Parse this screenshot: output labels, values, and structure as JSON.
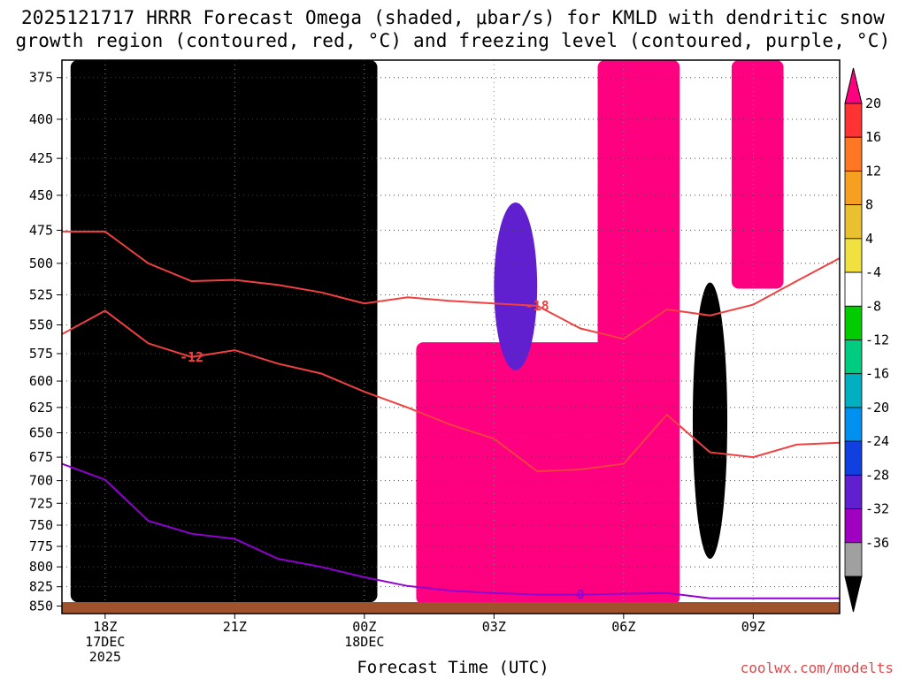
{
  "title_line1": "2025121717 HRRR Forecast Omega (shaded, μbar/s) for KMLD with dendritic snow",
  "title_line2": "growth region (contoured, red, °C) and freezing level (contoured, purple, °C)",
  "credit": "coolwx.com/modelts",
  "chart_data": {
    "type": "heatmap",
    "title": "2025121717 HRRR Forecast Omega (shaded, μbar/s) for KMLD with dendritic snow growth region (contoured, red, °C) and freezing level (contoured, purple, °C)",
    "xlabel": "Forecast Time (UTC)",
    "ylabel": "",
    "x_range_hours_from_18Z_17DEC": [
      -1,
      17
    ],
    "y_range_hPa": [
      860,
      365
    ],
    "y_scale": "pressure (log-like), inverted",
    "grid": "dotted",
    "x_ticks": [
      {
        "hour": 0,
        "label": "18Z",
        "sub1": "17DEC",
        "sub2": "2025"
      },
      {
        "hour": 3,
        "label": "21Z",
        "sub1": "",
        "sub2": ""
      },
      {
        "hour": 6,
        "label": "00Z",
        "sub1": "18DEC",
        "sub2": ""
      },
      {
        "hour": 9,
        "label": "03Z",
        "sub1": "",
        "sub2": ""
      },
      {
        "hour": 12,
        "label": "06Z",
        "sub1": "",
        "sub2": ""
      },
      {
        "hour": 15,
        "label": "09Z",
        "sub1": "",
        "sub2": ""
      }
    ],
    "y_ticks": [
      375,
      400,
      425,
      450,
      475,
      500,
      525,
      550,
      575,
      600,
      625,
      650,
      675,
      700,
      725,
      750,
      775,
      800,
      825,
      850
    ],
    "colorbar": {
      "labels": [
        "20",
        "16",
        "12",
        "8",
        "4",
        "-4",
        "-8",
        "-12",
        "-16",
        "-20",
        "-24",
        "-28",
        "-32",
        "-36"
      ],
      "colors": [
        "#ff0080",
        "#ff3333",
        "#ff7722",
        "#f5a020",
        "#e8c030",
        "#f0e040",
        "#ffffff",
        "#00cc00",
        "#00cc80",
        "#00b0c0",
        "#0090f0",
        "#1040e0",
        "#6020d0",
        "#a000c0",
        "#a0a0a0",
        "#000000"
      ]
    },
    "regions": [
      {
        "omega_class": "-36 and below",
        "x_hours": [
          -0.8,
          6.3
        ],
        "p_hPa": [
          365,
          845
        ],
        "color": "#000000"
      },
      {
        "omega_class": "-36 and below",
        "x_hours": [
          13.6,
          14.4
        ],
        "p_hPa": [
          515,
          790
        ],
        "color": "#000000"
      },
      {
        "omega_class": "20 and above",
        "x_hours": [
          7.2,
          12.7
        ],
        "p_hPa": [
          565,
          848
        ],
        "color": "#ff0080"
      },
      {
        "omega_class": "20 and above",
        "x_hours": [
          11.4,
          13.3
        ],
        "p_hPa": [
          365,
          848
        ],
        "color": "#ff0080"
      },
      {
        "omega_class": "20 and above",
        "x_hours": [
          14.5,
          15.7
        ],
        "p_hPa": [
          365,
          520
        ],
        "color": "#ff0080"
      },
      {
        "omega_class": "-24 to -28",
        "x_hours": [
          9.0,
          10.0
        ],
        "p_hPa": [
          455,
          590
        ],
        "color": "#6020d0"
      }
    ],
    "series": [
      {
        "name": "-12",
        "type": "contour",
        "color": "#f04040",
        "x": [
          -1.0,
          0.0,
          1.0,
          2.0,
          3.0,
          4.0,
          5.0,
          6.0,
          7.0,
          8.0,
          9.0,
          10.0,
          11.0,
          12.0,
          13.0,
          14.0,
          15.0,
          16.0,
          17.0
        ],
        "y": [
          558,
          538,
          566,
          578,
          572,
          584,
          593,
          610,
          625,
          642,
          656,
          690,
          688,
          682,
          632,
          670,
          675,
          662,
          660
        ]
      },
      {
        "name": "-18",
        "type": "contour",
        "color": "#f04040",
        "x": [
          -1.0,
          0.0,
          1.0,
          2.0,
          3.0,
          4.0,
          5.0,
          6.0,
          7.0,
          8.0,
          9.0,
          10.0,
          11.0,
          12.0,
          13.0,
          14.0,
          15.0,
          16.0,
          17.0
        ],
        "y": [
          476,
          476,
          500,
          514,
          513,
          517,
          523,
          532,
          527,
          530,
          532,
          534,
          553,
          562,
          537,
          542,
          533,
          514,
          496
        ]
      },
      {
        "name": "0",
        "type": "contour",
        "color": "#9000d0",
        "x": [
          -1.0,
          0.0,
          1.0,
          2.0,
          3.0,
          4.0,
          5.0,
          6.0,
          7.0,
          8.0,
          9.0,
          10.0,
          11.0,
          12.0,
          13.0,
          14.0,
          15.0,
          16.0,
          17.0
        ],
        "y": [
          682,
          699,
          745,
          760,
          766,
          790,
          800,
          813,
          824,
          830,
          833,
          835,
          835,
          834,
          833,
          840,
          840,
          840,
          840
        ]
      }
    ]
  }
}
